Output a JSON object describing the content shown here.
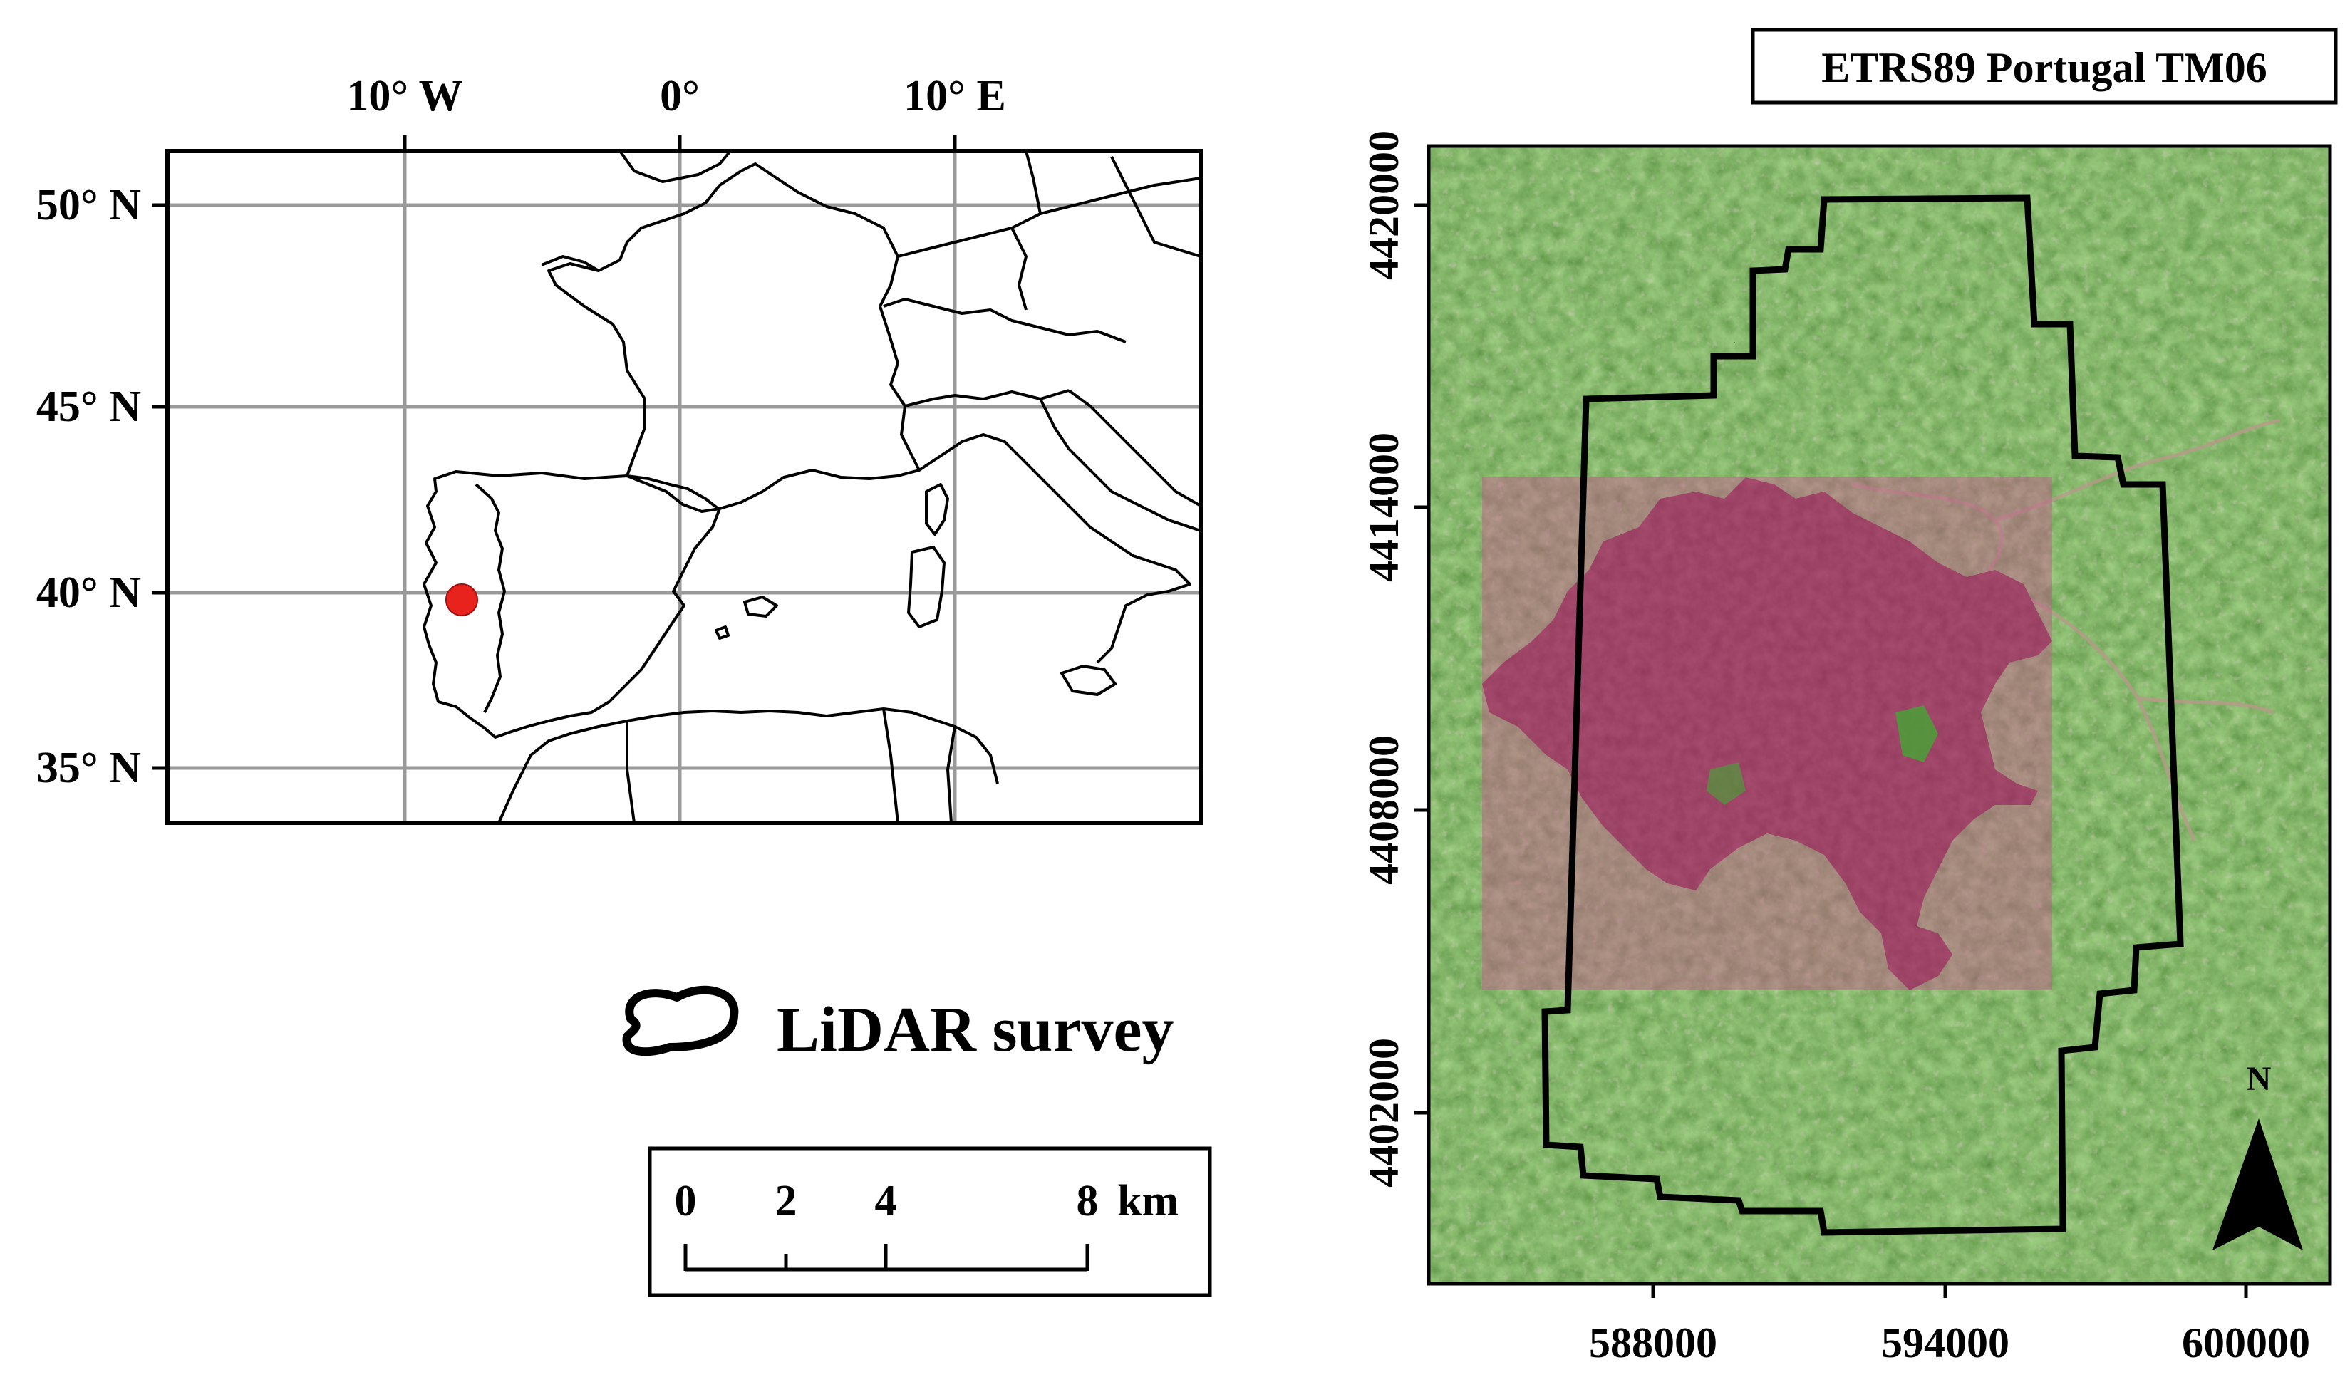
{
  "crs_label": "ETRS89 Portugal TM06",
  "inset_map": {
    "lon_ticks": [
      "10° W",
      "0°",
      "10° E"
    ],
    "lat_ticks": [
      "50° N",
      "45° N",
      "40° N",
      "35° N"
    ],
    "marker_color": "#e8231e"
  },
  "legend": {
    "label": "LiDAR survey",
    "icon": "outline-polygon-icon"
  },
  "scale_bar": {
    "ticks": [
      "0",
      "2",
      "4",
      "8"
    ],
    "unit": "km"
  },
  "main_map": {
    "x_ticks": [
      "588000",
      "594000",
      "600000"
    ],
    "y_ticks": [
      "4420000",
      "4414000",
      "4408000",
      "4402000"
    ],
    "north_label": "N",
    "colors": {
      "vegetation": "#4f9a3a",
      "burned": "#7a1f3d",
      "boundary": "#000000"
    }
  }
}
